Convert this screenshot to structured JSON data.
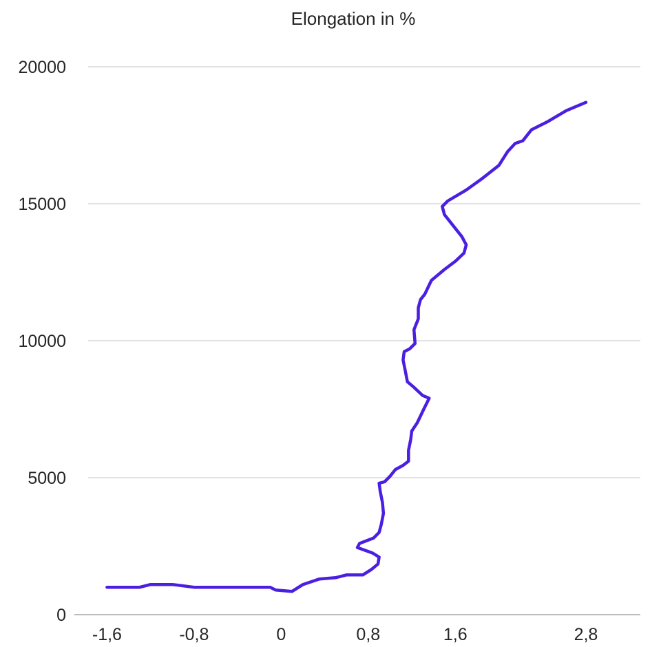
{
  "chart_data": {
    "type": "line",
    "title": "Elongation in %",
    "xlabel": "",
    "ylabel": "",
    "xlim": [
      -1.9,
      3.3
    ],
    "ylim": [
      0,
      20000
    ],
    "x_ticks": [
      -1.6,
      -0.8,
      0,
      0.8,
      1.6,
      2.8
    ],
    "x_tick_labels": [
      "-1,6",
      "-0,8",
      "0",
      "0,8",
      "1,6",
      "2,8"
    ],
    "y_ticks": [
      0,
      5000,
      10000,
      15000,
      20000
    ],
    "y_tick_labels": [
      "0",
      "5000",
      "10000",
      "15000",
      "20000"
    ],
    "grid": "horizontal",
    "legend": "none",
    "series": [
      {
        "color": "#4b1fe0",
        "points": [
          [
            -1.6,
            1000
          ],
          [
            -1.3,
            1000
          ],
          [
            -1.2,
            1100
          ],
          [
            -1.0,
            1100
          ],
          [
            -0.8,
            1000
          ],
          [
            -0.4,
            1000
          ],
          [
            -0.1,
            1000
          ],
          [
            -0.05,
            900
          ],
          [
            0.1,
            850
          ],
          [
            0.2,
            1100
          ],
          [
            0.35,
            1300
          ],
          [
            0.5,
            1350
          ],
          [
            0.6,
            1450
          ],
          [
            0.75,
            1450
          ],
          [
            0.83,
            1650
          ],
          [
            0.89,
            1850
          ],
          [
            0.9,
            2100
          ],
          [
            0.84,
            2250
          ],
          [
            0.7,
            2450
          ],
          [
            0.72,
            2600
          ],
          [
            0.85,
            2800
          ],
          [
            0.9,
            3000
          ],
          [
            0.92,
            3300
          ],
          [
            0.94,
            3700
          ],
          [
            0.93,
            4100
          ],
          [
            0.91,
            4500
          ],
          [
            0.9,
            4800
          ],
          [
            0.95,
            4850
          ],
          [
            1.0,
            5050
          ],
          [
            1.05,
            5300
          ],
          [
            1.12,
            5450
          ],
          [
            1.17,
            5600
          ],
          [
            1.17,
            6000
          ],
          [
            1.19,
            6400
          ],
          [
            1.2,
            6700
          ],
          [
            1.25,
            7000
          ],
          [
            1.31,
            7500
          ],
          [
            1.36,
            7900
          ],
          [
            1.3,
            8000
          ],
          [
            1.22,
            8300
          ],
          [
            1.16,
            8500
          ],
          [
            1.14,
            8900
          ],
          [
            1.12,
            9300
          ],
          [
            1.13,
            9600
          ],
          [
            1.18,
            9700
          ],
          [
            1.23,
            9900
          ],
          [
            1.22,
            10400
          ],
          [
            1.26,
            10800
          ],
          [
            1.26,
            11200
          ],
          [
            1.28,
            11500
          ],
          [
            1.32,
            11700
          ],
          [
            1.38,
            12200
          ],
          [
            1.5,
            12600
          ],
          [
            1.6,
            12900
          ],
          [
            1.68,
            13200
          ],
          [
            1.7,
            13500
          ],
          [
            1.66,
            13800
          ],
          [
            1.58,
            14200
          ],
          [
            1.5,
            14600
          ],
          [
            1.48,
            14900
          ],
          [
            1.53,
            15100
          ],
          [
            1.7,
            15500
          ],
          [
            1.84,
            15900
          ],
          [
            2.0,
            16400
          ],
          [
            2.08,
            16900
          ],
          [
            2.15,
            17200
          ],
          [
            2.22,
            17300
          ],
          [
            2.3,
            17700
          ],
          [
            2.45,
            18000
          ],
          [
            2.62,
            18400
          ],
          [
            2.8,
            18700
          ]
        ]
      }
    ]
  }
}
